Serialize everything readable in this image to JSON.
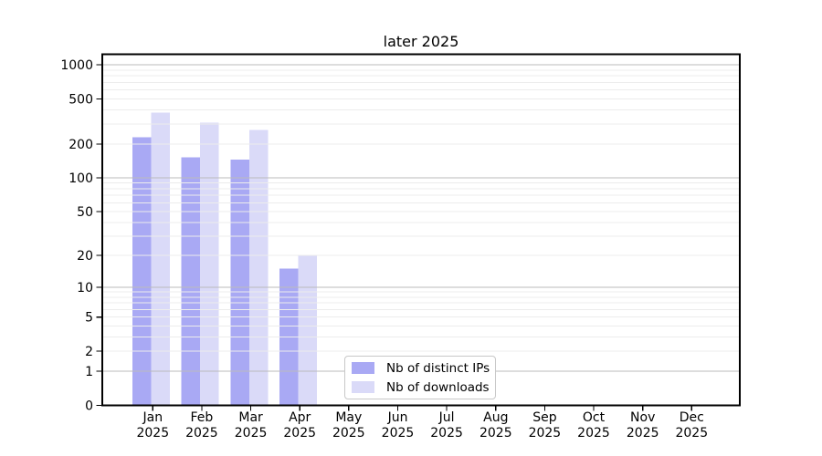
{
  "title": "later 2025",
  "chart_data": {
    "type": "bar",
    "title": "later 2025",
    "x": {
      "months": [
        "Jan",
        "Feb",
        "Mar",
        "Apr",
        "May",
        "Jun",
        "Jul",
        "Aug",
        "Sep",
        "Oct",
        "Nov",
        "Dec"
      ],
      "year": "2025"
    },
    "series": [
      {
        "name": "Nb of distinct IPs",
        "color": "#a9a9f4",
        "values": [
          230,
          152,
          145,
          15,
          0,
          0,
          0,
          0,
          0,
          0,
          0,
          0
        ]
      },
      {
        "name": "Nb of downloads",
        "color": "#dadaf8",
        "values": [
          378,
          310,
          267,
          20,
          0,
          0,
          0,
          0,
          0,
          0,
          0,
          0
        ]
      }
    ],
    "y_axis": {
      "scale": "log1p",
      "ticks": [
        0,
        1,
        2,
        5,
        10,
        20,
        50,
        100,
        200,
        500,
        1000
      ],
      "min": 0,
      "max": 1240
    },
    "grid": {
      "major_lines": [
        1,
        10,
        100,
        1000
      ],
      "minor_lines": [
        2,
        3,
        4,
        5,
        6,
        7,
        8,
        9,
        20,
        30,
        40,
        50,
        60,
        70,
        80,
        90,
        200,
        300,
        400,
        500,
        600,
        700,
        800,
        900
      ]
    },
    "legend": {
      "position": "inside-bottom-center"
    }
  },
  "colors": {
    "background": "#ffffff",
    "bar_distinct_ips": "#a9a9f4",
    "bar_downloads": "#dadaf8",
    "grid_major": "#bbbbbb",
    "grid_minor": "#ececec",
    "axis": "#000000",
    "legend_border": "#c8c8c8",
    "text": "#000000"
  }
}
